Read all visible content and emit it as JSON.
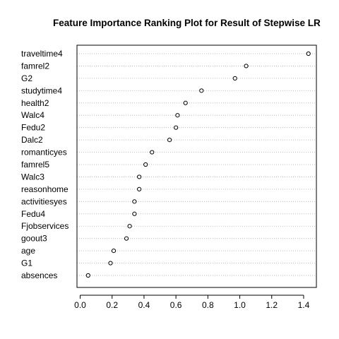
{
  "chart_data": {
    "type": "scatter",
    "title": "Feature Importance Ranking Plot for Result of Stepwise LR",
    "xlabel": "",
    "ylabel": "",
    "xlim": [
      -0.02,
      1.48
    ],
    "x_ticks": [
      0.0,
      0.2,
      0.4,
      0.6,
      0.8,
      1.0,
      1.2,
      1.4
    ],
    "x_tick_labels": [
      "0.0",
      "0.2",
      "0.4",
      "0.6",
      "0.8",
      "1.0",
      "1.2",
      "1.4"
    ],
    "grid": "dotted horizontal lines at each category",
    "point_style": "open circle",
    "categories": [
      "traveltime4",
      "famrel2",
      "G2",
      "studytime4",
      "health2",
      "Walc4",
      "Fedu2",
      "Dalc2",
      "romanticyes",
      "famrel5",
      "Walc3",
      "reasonhome",
      "activitiesyes",
      "Fedu4",
      "Fjobservices",
      "goout3",
      "age",
      "G1",
      "absences"
    ],
    "values": [
      1.43,
      1.04,
      0.97,
      0.76,
      0.66,
      0.61,
      0.6,
      0.56,
      0.45,
      0.41,
      0.37,
      0.37,
      0.34,
      0.34,
      0.31,
      0.29,
      0.21,
      0.19,
      0.05
    ]
  }
}
